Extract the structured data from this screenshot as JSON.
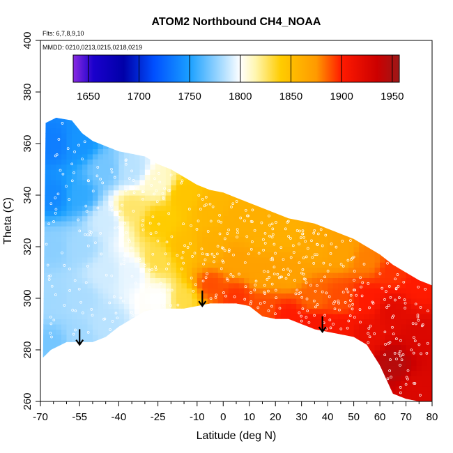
{
  "chart_data": {
    "type": "heatmap",
    "title": "ATOM2 Northbound CH4_NOAA",
    "annotations": {
      "flights": "Flts: 6,7,8,9,10",
      "dates": "MMDD: 0210,0213,0215,0218,0219"
    },
    "xlabel": "Latitude (deg N)",
    "ylabel": "Theta (C)",
    "xlim": [
      -70,
      80
    ],
    "ylim": [
      260,
      400
    ],
    "x_ticks": [
      -70,
      -55,
      -40,
      -25,
      -10,
      0,
      10,
      20,
      30,
      40,
      50,
      60,
      70,
      80
    ],
    "x_minor_ticks": [
      -65,
      -60,
      -50,
      -45,
      -35,
      -30,
      -20,
      -15,
      -5,
      5,
      15,
      25,
      35,
      45,
      55,
      65,
      75
    ],
    "y_ticks": [
      260,
      280,
      300,
      320,
      340,
      360,
      380,
      400
    ],
    "colorbar": {
      "range": [
        1635,
        1957
      ],
      "ticks": [
        1650,
        1700,
        1750,
        1800,
        1850,
        1900,
        1950
      ],
      "stops": [
        {
          "v": 1635,
          "c": "#8a2be2"
        },
        {
          "v": 1655,
          "c": "#1a00cc"
        },
        {
          "v": 1685,
          "c": "#0000a8"
        },
        {
          "v": 1715,
          "c": "#0050ff"
        },
        {
          "v": 1750,
          "c": "#1aa0ff"
        },
        {
          "v": 1785,
          "c": "#b8e2ff"
        },
        {
          "v": 1800,
          "c": "#ffffff"
        },
        {
          "v": 1815,
          "c": "#fff6b0"
        },
        {
          "v": 1840,
          "c": "#ffcc00"
        },
        {
          "v": 1875,
          "c": "#ff9a00"
        },
        {
          "v": 1900,
          "c": "#ff1a00"
        },
        {
          "v": 1935,
          "c": "#cc0000"
        },
        {
          "v": 1957,
          "c": "#9c1818"
        }
      ]
    },
    "upper_boundary": [
      [
        -68,
        368
      ],
      [
        -64,
        370
      ],
      [
        -58,
        369
      ],
      [
        -54,
        364
      ],
      [
        -50,
        361
      ],
      [
        -45,
        359
      ],
      [
        -40,
        357
      ],
      [
        -35,
        356
      ],
      [
        -30,
        355
      ],
      [
        -25,
        352
      ],
      [
        -20,
        350
      ],
      [
        -15,
        347
      ],
      [
        -10,
        344
      ],
      [
        -5,
        342
      ],
      [
        0,
        341
      ],
      [
        5,
        339
      ],
      [
        10,
        337
      ],
      [
        15,
        335
      ],
      [
        20,
        333
      ],
      [
        25,
        331
      ],
      [
        30,
        330
      ],
      [
        35,
        329
      ],
      [
        40,
        327
      ],
      [
        45,
        325
      ],
      [
        50,
        323
      ],
      [
        55,
        320
      ],
      [
        60,
        317
      ],
      [
        65,
        313
      ],
      [
        70,
        310
      ],
      [
        75,
        307
      ],
      [
        80,
        305
      ]
    ],
    "lower_boundary": [
      [
        -69,
        277
      ],
      [
        -66,
        280
      ],
      [
        -60,
        283
      ],
      [
        -55,
        283
      ],
      [
        -50,
        283
      ],
      [
        -45,
        285
      ],
      [
        -40,
        289
      ],
      [
        -35,
        292
      ],
      [
        -30,
        295
      ],
      [
        -25,
        296
      ],
      [
        -20,
        296
      ],
      [
        -15,
        296
      ],
      [
        -10,
        297
      ],
      [
        -5,
        298
      ],
      [
        0,
        298
      ],
      [
        5,
        298
      ],
      [
        10,
        297
      ],
      [
        15,
        293
      ],
      [
        20,
        292
      ],
      [
        25,
        292
      ],
      [
        30,
        290
      ],
      [
        35,
        288
      ],
      [
        40,
        287
      ],
      [
        45,
        286
      ],
      [
        50,
        285
      ],
      [
        55,
        282
      ],
      [
        60,
        274
      ],
      [
        65,
        263
      ],
      [
        70,
        261
      ],
      [
        75,
        260
      ],
      [
        80,
        260
      ]
    ],
    "field_control_points": [
      {
        "lat": -65,
        "theta": 360,
        "ch4": 1735
      },
      {
        "lat": -65,
        "theta": 340,
        "ch4": 1740
      },
      {
        "lat": -65,
        "theta": 320,
        "ch4": 1775
      },
      {
        "lat": -65,
        "theta": 300,
        "ch4": 1780
      },
      {
        "lat": -65,
        "theta": 282,
        "ch4": 1770
      },
      {
        "lat": -55,
        "theta": 360,
        "ch4": 1745
      },
      {
        "lat": -55,
        "theta": 340,
        "ch4": 1755
      },
      {
        "lat": -55,
        "theta": 320,
        "ch4": 1780
      },
      {
        "lat": -55,
        "theta": 300,
        "ch4": 1782
      },
      {
        "lat": -55,
        "theta": 285,
        "ch4": 1780
      },
      {
        "lat": -45,
        "theta": 350,
        "ch4": 1770
      },
      {
        "lat": -45,
        "theta": 330,
        "ch4": 1790
      },
      {
        "lat": -45,
        "theta": 310,
        "ch4": 1790
      },
      {
        "lat": -45,
        "theta": 290,
        "ch4": 1785
      },
      {
        "lat": -35,
        "theta": 350,
        "ch4": 1785
      },
      {
        "lat": -35,
        "theta": 335,
        "ch4": 1825
      },
      {
        "lat": -35,
        "theta": 310,
        "ch4": 1795
      },
      {
        "lat": -25,
        "theta": 345,
        "ch4": 1810
      },
      {
        "lat": -25,
        "theta": 330,
        "ch4": 1840
      },
      {
        "lat": -25,
        "theta": 315,
        "ch4": 1830
      },
      {
        "lat": -25,
        "theta": 300,
        "ch4": 1800
      },
      {
        "lat": -15,
        "theta": 340,
        "ch4": 1845
      },
      {
        "lat": -15,
        "theta": 320,
        "ch4": 1850
      },
      {
        "lat": -15,
        "theta": 300,
        "ch4": 1830
      },
      {
        "lat": -5,
        "theta": 335,
        "ch4": 1855
      },
      {
        "lat": -5,
        "theta": 320,
        "ch4": 1860
      },
      {
        "lat": -5,
        "theta": 305,
        "ch4": 1890
      },
      {
        "lat": 5,
        "theta": 330,
        "ch4": 1860
      },
      {
        "lat": 5,
        "theta": 315,
        "ch4": 1870
      },
      {
        "lat": 5,
        "theta": 300,
        "ch4": 1895
      },
      {
        "lat": 15,
        "theta": 325,
        "ch4": 1860
      },
      {
        "lat": 15,
        "theta": 310,
        "ch4": 1870
      },
      {
        "lat": 15,
        "theta": 296,
        "ch4": 1890
      },
      {
        "lat": 25,
        "theta": 325,
        "ch4": 1860
      },
      {
        "lat": 25,
        "theta": 310,
        "ch4": 1870
      },
      {
        "lat": 25,
        "theta": 293,
        "ch4": 1900
      },
      {
        "lat": 35,
        "theta": 320,
        "ch4": 1865
      },
      {
        "lat": 35,
        "theta": 300,
        "ch4": 1885
      },
      {
        "lat": 35,
        "theta": 290,
        "ch4": 1905
      },
      {
        "lat": 45,
        "theta": 318,
        "ch4": 1870
      },
      {
        "lat": 45,
        "theta": 300,
        "ch4": 1890
      },
      {
        "lat": 45,
        "theta": 287,
        "ch4": 1905
      },
      {
        "lat": 55,
        "theta": 315,
        "ch4": 1880
      },
      {
        "lat": 55,
        "theta": 300,
        "ch4": 1900
      },
      {
        "lat": 55,
        "theta": 285,
        "ch4": 1915
      },
      {
        "lat": 65,
        "theta": 310,
        "ch4": 1895
      },
      {
        "lat": 65,
        "theta": 295,
        "ch4": 1920
      },
      {
        "lat": 65,
        "theta": 275,
        "ch4": 1945
      },
      {
        "lat": 75,
        "theta": 305,
        "ch4": 1900
      },
      {
        "lat": 75,
        "theta": 285,
        "ch4": 1925
      },
      {
        "lat": 75,
        "theta": 265,
        "ch4": 1925
      }
    ],
    "arrows": [
      {
        "lat": -55,
        "theta_top": 288,
        "theta_tip": 282
      },
      {
        "lat": -8,
        "theta_top": 303,
        "theta_tip": 297
      },
      {
        "lat": 38,
        "theta_top": 293,
        "theta_tip": 287
      }
    ]
  }
}
